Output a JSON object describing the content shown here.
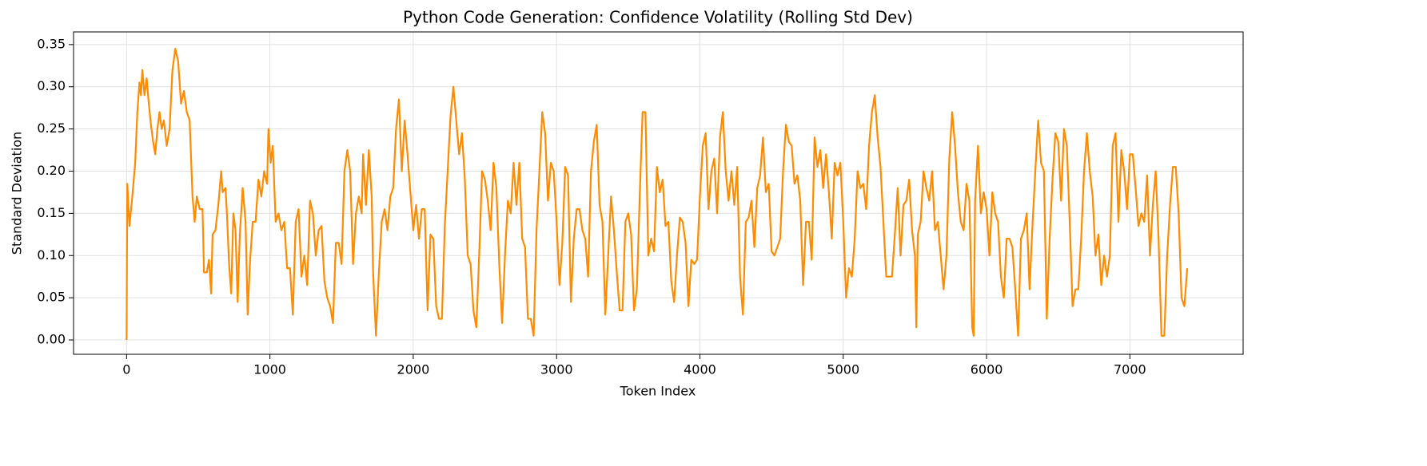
{
  "chart_data": {
    "type": "line",
    "title": "Python Code Generation: Confidence Volatility (Rolling Std Dev)",
    "x_label": "Token Index",
    "y_label": "Standard Deviation",
    "color": "#ff8c00",
    "grid": true,
    "xlim": [
      -370,
      7790
    ],
    "ylim": [
      -0.017,
      0.365
    ],
    "xticks": [
      0,
      1000,
      2000,
      3000,
      4000,
      5000,
      6000,
      7000
    ],
    "yticks": [
      {
        "value": 0,
        "label": "0.00"
      },
      {
        "value": 0.05,
        "label": "0.05"
      },
      {
        "value": 0.1,
        "label": "0.10"
      },
      0.15,
      {
        "value": 0.2,
        "label": "0.20"
      },
      0.25,
      {
        "value": 0.3,
        "label": "0.30"
      },
      0.35
    ],
    "x": [
      0,
      5,
      20,
      40,
      60,
      75,
      90,
      100,
      110,
      125,
      140,
      155,
      170,
      185,
      200,
      215,
      230,
      245,
      260,
      280,
      300,
      320,
      340,
      360,
      380,
      400,
      420,
      440,
      460,
      475,
      490,
      510,
      530,
      540,
      560,
      575,
      590,
      600,
      620,
      640,
      660,
      670,
      690,
      700,
      715,
      730,
      745,
      760,
      775,
      790,
      810,
      830,
      845,
      860,
      880,
      900,
      920,
      940,
      960,
      980,
      990,
      1005,
      1020,
      1040,
      1060,
      1080,
      1100,
      1120,
      1140,
      1160,
      1180,
      1200,
      1220,
      1240,
      1260,
      1280,
      1300,
      1320,
      1340,
      1360,
      1380,
      1400,
      1420,
      1440,
      1460,
      1480,
      1500,
      1520,
      1540,
      1560,
      1580,
      1600,
      1620,
      1640,
      1650,
      1670,
      1690,
      1710,
      1720,
      1740,
      1760,
      1780,
      1800,
      1820,
      1840,
      1860,
      1880,
      1900,
      1920,
      1940,
      1960,
      1980,
      2000,
      2020,
      2040,
      2060,
      2080,
      2100,
      2120,
      2140,
      2160,
      2180,
      2200,
      2220,
      2240,
      2260,
      2280,
      2300,
      2320,
      2340,
      2360,
      2380,
      2400,
      2420,
      2440,
      2460,
      2480,
      2500,
      2520,
      2540,
      2560,
      2580,
      2600,
      2620,
      2640,
      2660,
      2680,
      2700,
      2720,
      2740,
      2760,
      2780,
      2800,
      2820,
      2840,
      2860,
      2880,
      2900,
      2920,
      2940,
      2960,
      2980,
      3000,
      3020,
      3040,
      3060,
      3080,
      3100,
      3120,
      3140,
      3160,
      3180,
      3200,
      3220,
      3240,
      3260,
      3280,
      3300,
      3320,
      3340,
      3360,
      3380,
      3400,
      3420,
      3440,
      3460,
      3480,
      3500,
      3520,
      3540,
      3560,
      3580,
      3600,
      3620,
      3640,
      3660,
      3680,
      3700,
      3720,
      3740,
      3760,
      3780,
      3800,
      3820,
      3840,
      3860,
      3880,
      3900,
      3920,
      3940,
      3960,
      3980,
      4000,
      4020,
      4040,
      4060,
      4080,
      4100,
      4120,
      4140,
      4160,
      4180,
      4200,
      4220,
      4240,
      4260,
      4280,
      4300,
      4320,
      4340,
      4360,
      4380,
      4400,
      4420,
      4440,
      4460,
      4480,
      4500,
      4520,
      4540,
      4560,
      4580,
      4600,
      4620,
      4640,
      4660,
      4680,
      4700,
      4720,
      4740,
      4760,
      4780,
      4800,
      4820,
      4840,
      4860,
      4880,
      4900,
      4920,
      4940,
      4960,
      4980,
      5000,
      5020,
      5040,
      5060,
      5080,
      5100,
      5120,
      5140,
      5160,
      5180,
      5200,
      5220,
      5240,
      5260,
      5280,
      5300,
      5320,
      5340,
      5360,
      5380,
      5400,
      5420,
      5440,
      5460,
      5480,
      5500,
      5510,
      5520,
      5540,
      5560,
      5580,
      5600,
      5620,
      5640,
      5660,
      5680,
      5700,
      5720,
      5740,
      5760,
      5780,
      5800,
      5820,
      5840,
      5860,
      5880,
      5900,
      5910,
      5920,
      5940,
      5960,
      5980,
      6000,
      6020,
      6040,
      6060,
      6080,
      6100,
      6120,
      6140,
      6160,
      6180,
      6200,
      6220,
      6240,
      6260,
      6280,
      6300,
      6320,
      6340,
      6360,
      6380,
      6400,
      6420,
      6440,
      6460,
      6480,
      6500,
      6520,
      6540,
      6560,
      6580,
      6600,
      6620,
      6640,
      6660,
      6680,
      6700,
      6720,
      6740,
      6760,
      6780,
      6800,
      6820,
      6840,
      6860,
      6880,
      6900,
      6920,
      6940,
      6960,
      6980,
      7000,
      7020,
      7040,
      7060,
      7080,
      7100,
      7120,
      7140,
      7160,
      7180,
      7200,
      7220,
      7240,
      7260,
      7280,
      7300,
      7320,
      7340,
      7360,
      7380,
      7400
    ],
    "values": [
      0,
      0.185,
      0.135,
      0.17,
      0.21,
      0.27,
      0.305,
      0.29,
      0.32,
      0.29,
      0.31,
      0.28,
      0.255,
      0.235,
      0.22,
      0.25,
      0.27,
      0.25,
      0.26,
      0.23,
      0.25,
      0.32,
      0.345,
      0.33,
      0.28,
      0.295,
      0.27,
      0.26,
      0.17,
      0.14,
      0.17,
      0.155,
      0.155,
      0.08,
      0.08,
      0.095,
      0.055,
      0.125,
      0.13,
      0.16,
      0.2,
      0.175,
      0.18,
      0.15,
      0.09,
      0.055,
      0.15,
      0.13,
      0.045,
      0.125,
      0.18,
      0.14,
      0.03,
      0.09,
      0.14,
      0.14,
      0.19,
      0.17,
      0.2,
      0.185,
      0.25,
      0.21,
      0.23,
      0.14,
      0.15,
      0.13,
      0.14,
      0.085,
      0.085,
      0.03,
      0.14,
      0.155,
      0.075,
      0.1,
      0.065,
      0.165,
      0.15,
      0.1,
      0.13,
      0.135,
      0.07,
      0.05,
      0.04,
      0.02,
      0.115,
      0.115,
      0.09,
      0.2,
      0.225,
      0.2,
      0.09,
      0.15,
      0.17,
      0.15,
      0.22,
      0.16,
      0.225,
      0.17,
      0.08,
      0.005,
      0.08,
      0.14,
      0.155,
      0.13,
      0.17,
      0.18,
      0.25,
      0.285,
      0.2,
      0.26,
      0.22,
      0.175,
      0.13,
      0.16,
      0.12,
      0.155,
      0.155,
      0.035,
      0.125,
      0.12,
      0.04,
      0.025,
      0.025,
      0.135,
      0.2,
      0.265,
      0.3,
      0.26,
      0.22,
      0.245,
      0.19,
      0.1,
      0.09,
      0.035,
      0.015,
      0.1,
      0.2,
      0.19,
      0.165,
      0.13,
      0.21,
      0.18,
      0.09,
      0.02,
      0.1,
      0.165,
      0.15,
      0.21,
      0.16,
      0.21,
      0.12,
      0.11,
      0.025,
      0.025,
      0.005,
      0.13,
      0.2,
      0.27,
      0.245,
      0.165,
      0.21,
      0.2,
      0.14,
      0.065,
      0.115,
      0.205,
      0.195,
      0.045,
      0.12,
      0.155,
      0.155,
      0.13,
      0.12,
      0.075,
      0.2,
      0.235,
      0.255,
      0.16,
      0.14,
      0.03,
      0.1,
      0.17,
      0.13,
      0.08,
      0.035,
      0.035,
      0.14,
      0.15,
      0.125,
      0.035,
      0.06,
      0.17,
      0.27,
      0.27,
      0.1,
      0.12,
      0.105,
      0.205,
      0.175,
      0.19,
      0.135,
      0.14,
      0.07,
      0.045,
      0.1,
      0.145,
      0.14,
      0.115,
      0.04,
      0.095,
      0.09,
      0.095,
      0.17,
      0.23,
      0.245,
      0.155,
      0.2,
      0.215,
      0.15,
      0.24,
      0.27,
      0.2,
      0.165,
      0.2,
      0.16,
      0.205,
      0.075,
      0.03,
      0.14,
      0.145,
      0.165,
      0.11,
      0.18,
      0.195,
      0.24,
      0.175,
      0.185,
      0.105,
      0.1,
      0.11,
      0.12,
      0.2,
      0.255,
      0.235,
      0.23,
      0.185,
      0.195,
      0.165,
      0.065,
      0.14,
      0.14,
      0.095,
      0.24,
      0.205,
      0.225,
      0.18,
      0.22,
      0.175,
      0.12,
      0.21,
      0.195,
      0.21,
      0.14,
      0.05,
      0.085,
      0.075,
      0.12,
      0.2,
      0.18,
      0.185,
      0.155,
      0.23,
      0.27,
      0.29,
      0.24,
      0.205,
      0.14,
      0.075,
      0.075,
      0.075,
      0.125,
      0.18,
      0.1,
      0.16,
      0.165,
      0.19,
      0.13,
      0.1,
      0.015,
      0.125,
      0.14,
      0.2,
      0.18,
      0.165,
      0.2,
      0.13,
      0.14,
      0.1,
      0.06,
      0.1,
      0.215,
      0.27,
      0.23,
      0.175,
      0.14,
      0.13,
      0.185,
      0.165,
      0.015,
      0.005,
      0.165,
      0.23,
      0.15,
      0.175,
      0.155,
      0.1,
      0.175,
      0.15,
      0.14,
      0.075,
      0.05,
      0.12,
      0.12,
      0.11,
      0.06,
      0.005,
      0.12,
      0.13,
      0.15,
      0.06,
      0.135,
      0.2,
      0.26,
      0.21,
      0.2,
      0.025,
      0.12,
      0.19,
      0.245,
      0.235,
      0.165,
      0.25,
      0.23,
      0.14,
      0.04,
      0.06,
      0.06,
      0.12,
      0.2,
      0.245,
      0.2,
      0.17,
      0.1,
      0.125,
      0.065,
      0.1,
      0.075,
      0.1,
      0.23,
      0.245,
      0.14,
      0.225,
      0.2,
      0.155,
      0.22,
      0.22,
      0.18,
      0.135,
      0.15,
      0.14,
      0.195,
      0.1,
      0.16,
      0.2,
      0.12,
      0.005,
      0.005,
      0.1,
      0.16,
      0.205,
      0.205,
      0.15,
      0.05,
      0.04,
      0.085
    ]
  }
}
